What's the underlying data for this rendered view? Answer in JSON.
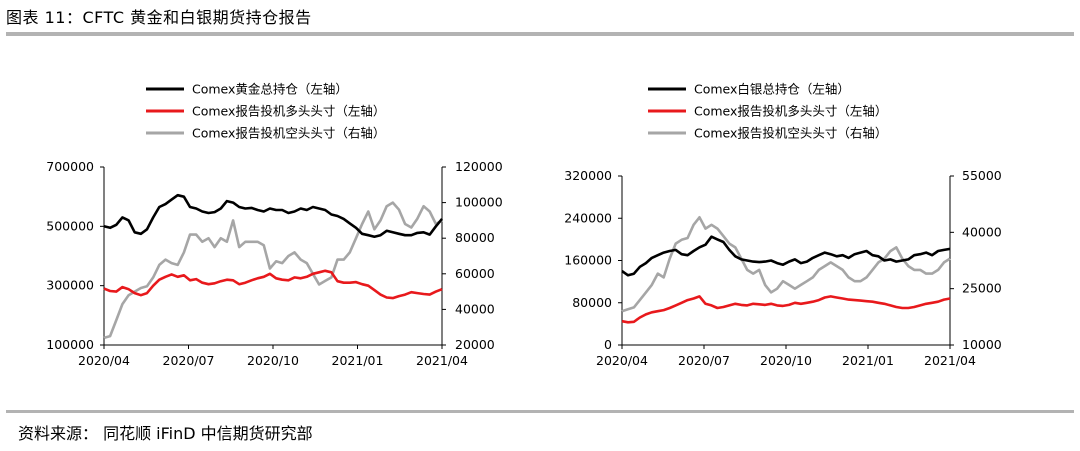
{
  "figure": {
    "title": "图表 11：CFTC 黄金和白银期货持仓报告",
    "source": "资料来源： 同花顺 iFinD 中信期货研究部"
  },
  "colors": {
    "black": "#000000",
    "red": "#e8191c",
    "gray": "#a6a6a6"
  },
  "chart_data": [
    {
      "type": "line",
      "panel": "gold",
      "x_ticks": [
        "2020/04",
        "2020/07",
        "2020/10",
        "2021/01",
        "2021/04"
      ],
      "left_axis": {
        "ticks": [
          "100000",
          "300000",
          "500000",
          "700000"
        ],
        "ylim": [
          100000,
          700000
        ]
      },
      "right_axis": {
        "ticks": [
          "20000",
          "40000",
          "60000",
          "80000",
          "100000",
          "120000"
        ],
        "ylim": [
          20000,
          120000
        ]
      },
      "legend_placement": "top",
      "series": [
        {
          "name": "Comex黄金总持仓（左轴）",
          "axis": "left",
          "color": "black",
          "values": [
            500000,
            495000,
            505000,
            530000,
            520000,
            480000,
            475000,
            490000,
            530000,
            565000,
            575000,
            590000,
            605000,
            600000,
            565000,
            560000,
            550000,
            545000,
            548000,
            560000,
            585000,
            580000,
            565000,
            560000,
            562000,
            555000,
            550000,
            560000,
            555000,
            555000,
            545000,
            550000,
            560000,
            555000,
            565000,
            560000,
            555000,
            540000,
            535000,
            525000,
            510000,
            495000,
            475000,
            470000,
            465000,
            470000,
            485000,
            480000,
            475000,
            470000,
            470000,
            478000,
            480000,
            472000,
            500000,
            525000
          ]
        },
        {
          "name": "Comex报告投机多头头寸（左轴）",
          "axis": "left",
          "color": "red",
          "values": [
            290000,
            282000,
            280000,
            295000,
            288000,
            275000,
            268000,
            275000,
            300000,
            320000,
            330000,
            338000,
            330000,
            335000,
            318000,
            322000,
            310000,
            305000,
            308000,
            315000,
            320000,
            318000,
            305000,
            310000,
            318000,
            325000,
            330000,
            340000,
            325000,
            320000,
            318000,
            328000,
            325000,
            330000,
            340000,
            345000,
            350000,
            345000,
            315000,
            310000,
            310000,
            312000,
            305000,
            300000,
            285000,
            270000,
            260000,
            258000,
            265000,
            270000,
            278000,
            275000,
            272000,
            270000,
            280000,
            288000
          ]
        },
        {
          "name": "Comex报告投机空头头寸（右轴）",
          "axis": "right",
          "color": "gray",
          "values": [
            24000,
            25000,
            34000,
            43000,
            48000,
            50000,
            52000,
            53000,
            58000,
            65000,
            68000,
            66000,
            65000,
            72000,
            82000,
            82000,
            78000,
            80000,
            75000,
            80000,
            78000,
            90000,
            75000,
            78000,
            78000,
            78000,
            76000,
            63000,
            67000,
            66000,
            70000,
            72000,
            68000,
            66000,
            60000,
            54000,
            56000,
            58000,
            68000,
            68000,
            72000,
            80000,
            88000,
            95000,
            85000,
            90000,
            98000,
            100000,
            96000,
            88000,
            86000,
            91000,
            98000,
            95000,
            88000,
            90000
          ]
        }
      ]
    },
    {
      "type": "line",
      "panel": "silver",
      "x_ticks": [
        "2020/04",
        "2020/07",
        "2020/10",
        "2021/01",
        "2021/04"
      ],
      "left_axis": {
        "ticks": [
          "0",
          "80000",
          "160000",
          "240000",
          "320000"
        ],
        "ylim": [
          0,
          320000
        ]
      },
      "right_axis": {
        "ticks": [
          "10000",
          "25000",
          "40000",
          "55000"
        ],
        "ylim": [
          10000,
          55000
        ]
      },
      "legend_placement": "top",
      "series": [
        {
          "name": "Comex白银总持仓（左轴）",
          "axis": "left",
          "color": "black",
          "values": [
            140000,
            132000,
            135000,
            148000,
            155000,
            165000,
            170000,
            175000,
            178000,
            180000,
            172000,
            170000,
            178000,
            185000,
            190000,
            205000,
            200000,
            195000,
            180000,
            168000,
            162000,
            160000,
            158000,
            157000,
            158000,
            160000,
            155000,
            152000,
            158000,
            162000,
            155000,
            158000,
            165000,
            170000,
            175000,
            172000,
            168000,
            170000,
            165000,
            172000,
            175000,
            178000,
            170000,
            168000,
            160000,
            162000,
            158000,
            160000,
            162000,
            170000,
            172000,
            175000,
            170000,
            178000,
            180000,
            182000
          ]
        },
        {
          "name": "Comex报告投机多头头寸（左轴）",
          "axis": "left",
          "color": "red",
          "values": [
            45000,
            43000,
            44000,
            52000,
            58000,
            62000,
            64000,
            66000,
            70000,
            75000,
            80000,
            85000,
            88000,
            92000,
            78000,
            75000,
            70000,
            72000,
            75000,
            78000,
            76000,
            75000,
            78000,
            77000,
            76000,
            78000,
            75000,
            74000,
            76000,
            80000,
            78000,
            80000,
            82000,
            85000,
            90000,
            92000,
            90000,
            88000,
            86000,
            85000,
            84000,
            83000,
            82000,
            80000,
            78000,
            75000,
            72000,
            70000,
            70000,
            72000,
            75000,
            78000,
            80000,
            82000,
            86000,
            88000
          ]
        },
        {
          "name": "Comex报告投机空头头寸（右轴）",
          "axis": "right",
          "color": "gray",
          "values": [
            19000,
            19500,
            20000,
            22000,
            24000,
            26000,
            29000,
            28000,
            33000,
            37000,
            38000,
            38500,
            42000,
            44000,
            41000,
            42000,
            41000,
            39000,
            37000,
            36000,
            33000,
            30000,
            29000,
            30000,
            26000,
            24000,
            25000,
            27000,
            26000,
            25000,
            26000,
            27000,
            28000,
            30000,
            31000,
            32000,
            31000,
            30000,
            28000,
            27000,
            27000,
            28000,
            30000,
            32000,
            33000,
            35000,
            36000,
            33000,
            31000,
            30000,
            30000,
            29000,
            29000,
            30000,
            32000,
            33000
          ]
        }
      ]
    }
  ]
}
